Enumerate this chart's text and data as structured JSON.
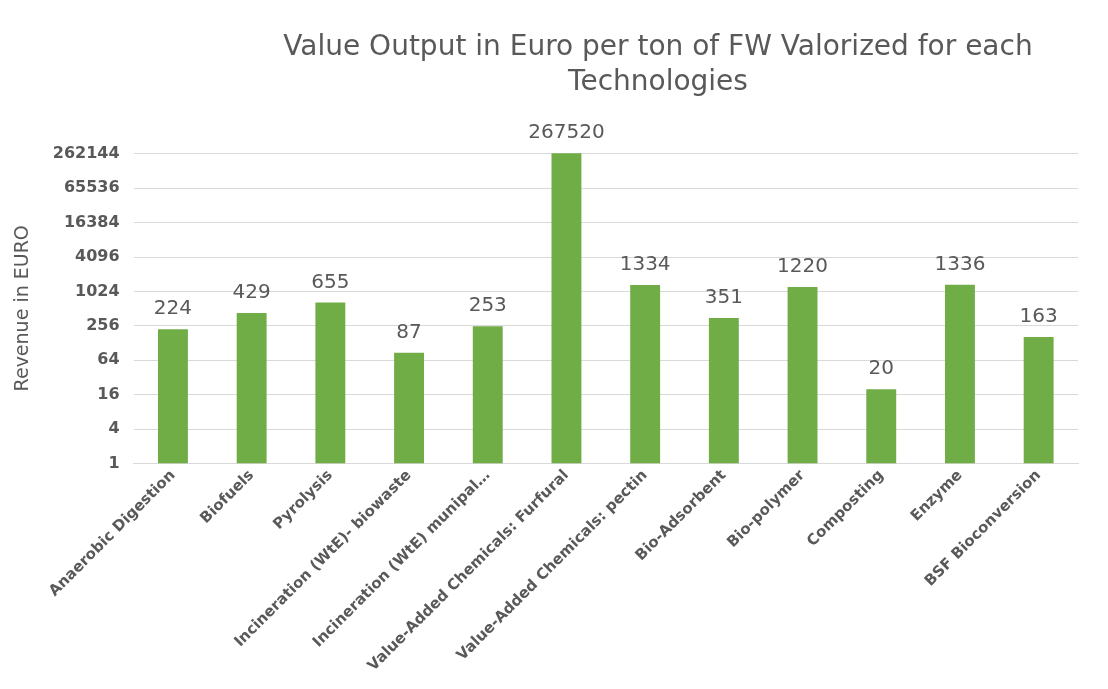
{
  "chart_data": {
    "type": "bar",
    "title": "Value Output in Euro per ton of FW Valorized  for each Technologies",
    "ylabel": "Revenue in EURO",
    "categories": [
      "Anaerobic Digestion",
      "Biofuels",
      "Pyrolysis",
      "Incineration (WtE)- biowaste",
      "Incineration (WtE) munipal…",
      "Value-Added Chemicals: Furfural",
      "Value-Added Chemicals: pectin",
      "Bio-Adsorbent",
      "Bio-polymer",
      "Composting",
      "Enzyme",
      "BSF Bioconversion"
    ],
    "values": [
      224,
      429,
      655,
      87,
      253,
      267520,
      1334,
      351,
      1220,
      20,
      1336,
      163
    ],
    "color": "#70ad47",
    "log": true,
    "ylim": [
      1,
      270000
    ],
    "yticks": [
      1,
      4,
      16,
      64,
      256,
      1024,
      4096,
      16384,
      65536,
      262144
    ],
    "grid": "y",
    "data_labels": true,
    "legend": false
  }
}
